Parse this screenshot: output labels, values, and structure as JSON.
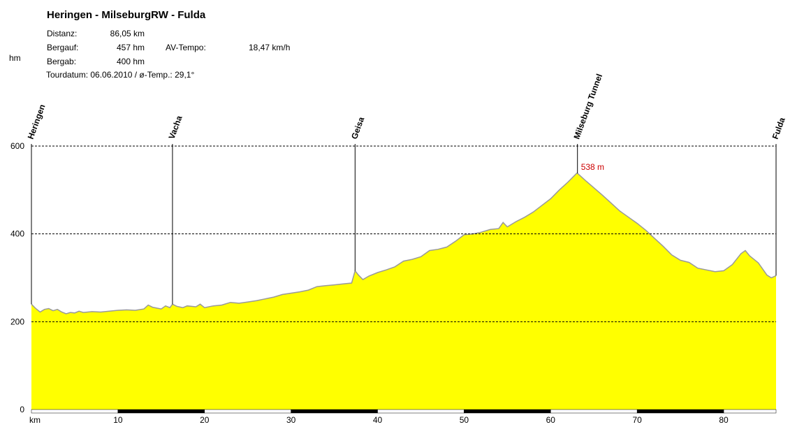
{
  "title": "Heringen - MilseburgRW - Fulda",
  "stats": {
    "distanz_label": "Distanz:",
    "distanz_value": "86,05 km",
    "bergauf_label": "Bergauf:",
    "bergauf_value": "457 hm",
    "bergab_label": "Bergab:",
    "bergab_value": "400 hm",
    "tempo_label": "AV-Tempo:",
    "tempo_value": "18,47 km/h",
    "tourdatum": "Tourdatum: 06.06.2010  /  ø-Temp.: 29,1°"
  },
  "colors": {
    "fill": "#ffff00",
    "outline": "#999999",
    "peak_label": "#cc0000",
    "grid": "#000000"
  },
  "chart_data": {
    "type": "area",
    "title": "Heringen - MilseburgRW - Fulda",
    "xlabel": "km",
    "ylabel": "hm",
    "xlim": [
      0,
      86.05
    ],
    "ylim": [
      0,
      600
    ],
    "x_ticks": [
      10,
      20,
      30,
      40,
      50,
      60,
      70,
      80
    ],
    "y_ticks": [
      0,
      200,
      400,
      600
    ],
    "grid": "horizontal dashed",
    "waypoints": [
      {
        "name": "Heringen",
        "km": 0
      },
      {
        "name": "Vacha",
        "km": 16.3
      },
      {
        "name": "Geisa",
        "km": 37.4
      },
      {
        "name": "Milseburg Tunnel",
        "km": 63.1
      },
      {
        "name": "Fulda",
        "km": 86.05
      }
    ],
    "peak": {
      "label": "538 m",
      "km": 63.1,
      "elevation": 538
    },
    "series": [
      {
        "x": [
          0,
          0.5,
          1,
          1.5,
          2,
          2.5,
          3,
          3.5,
          4,
          4.5,
          5,
          5.5,
          6,
          7,
          8,
          9,
          10,
          11,
          12,
          13,
          13.5,
          14,
          15,
          15.5,
          16,
          16.3,
          16.8,
          17.5,
          18,
          19,
          19.5,
          20,
          21,
          22,
          23,
          24,
          25,
          26,
          27,
          28,
          29,
          30,
          31,
          32,
          33,
          34,
          35,
          36,
          37,
          37.4,
          37.8,
          38.3,
          39,
          40,
          41,
          42,
          43,
          44,
          45,
          46,
          47,
          48,
          49,
          50,
          51,
          52,
          53,
          54,
          54.5,
          55,
          56,
          57,
          58,
          59,
          60,
          61,
          62,
          63,
          63.1,
          64,
          65,
          66,
          67,
          68,
          69,
          70,
          71,
          72,
          73,
          74,
          75,
          76,
          77,
          78,
          79,
          80,
          81,
          82,
          82.5,
          83,
          84,
          85,
          85.5,
          86.05
        ],
        "y": [
          240,
          230,
          222,
          228,
          230,
          225,
          228,
          222,
          218,
          221,
          220,
          224,
          221,
          223,
          222,
          224,
          226,
          227,
          226,
          229,
          238,
          233,
          229,
          236,
          232,
          240,
          235,
          232,
          236,
          234,
          240,
          232,
          236,
          238,
          244,
          242,
          245,
          248,
          252,
          256,
          262,
          265,
          268,
          272,
          280,
          282,
          284,
          286,
          288,
          316,
          306,
          296,
          304,
          312,
          318,
          325,
          338,
          342,
          348,
          362,
          365,
          370,
          383,
          398,
          400,
          404,
          410,
          412,
          426,
          416,
          428,
          438,
          450,
          465,
          480,
          500,
          518,
          538,
          538,
          522,
          505,
          488,
          470,
          452,
          438,
          424,
          408,
          390,
          372,
          352,
          340,
          335,
          322,
          318,
          314,
          316,
          330,
          355,
          362,
          350,
          334,
          306,
          300,
          305
        ]
      }
    ]
  }
}
